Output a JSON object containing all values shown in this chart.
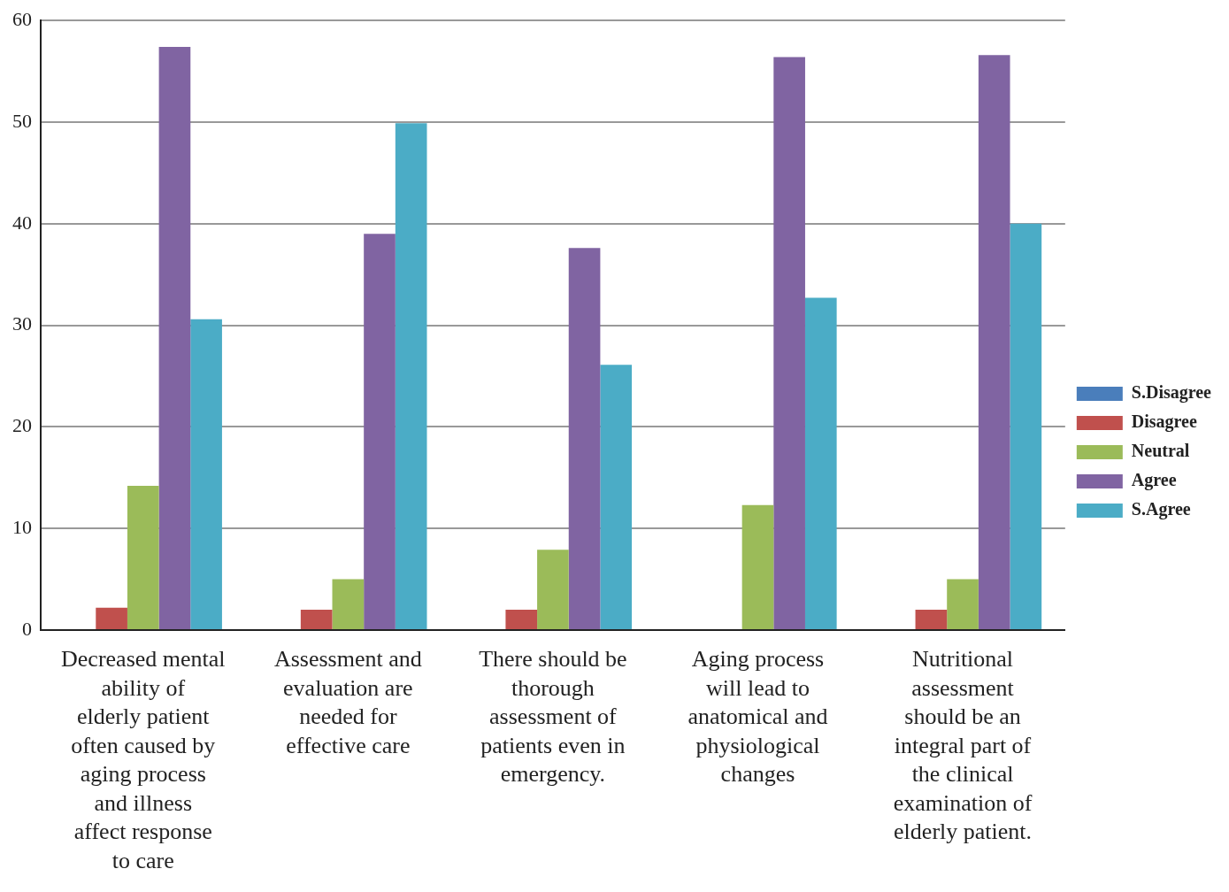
{
  "chart_data": {
    "type": "bar",
    "categories": [
      "Decreased mental ability of elderly patient often caused by aging process and illness affect response to care",
      "Assessment and evaluation are needed for effective care",
      "There should be thorough assessment of patients even in emergency.",
      "Aging process will lead to anatomical and physiological changes",
      "Nutritional assessment should be an integral part of the clinical examination of elderly patient."
    ],
    "series": [
      {
        "name": "S.Disagree",
        "color": "#4a7ebb",
        "values": [
          0,
          0,
          0,
          0,
          0
        ]
      },
      {
        "name": "Disagree",
        "color": "#c0504d",
        "values": [
          2.2,
          2,
          2,
          0,
          2
        ]
      },
      {
        "name": "Neutral",
        "color": "#9bbb59",
        "values": [
          14.2,
          5,
          7.9,
          12.3,
          5
        ]
      },
      {
        "name": "Agree",
        "color": "#8064a2",
        "values": [
          57.4,
          39,
          37.6,
          56.4,
          56.6
        ]
      },
      {
        "name": "S.Agree",
        "color": "#4bacc6",
        "values": [
          30.6,
          49.9,
          26.1,
          32.7,
          40
        ]
      }
    ],
    "ylim": [
      0,
      60
    ],
    "yticks": [
      0,
      10,
      20,
      30,
      40,
      50,
      60
    ],
    "grid": "y",
    "legend": "right"
  }
}
